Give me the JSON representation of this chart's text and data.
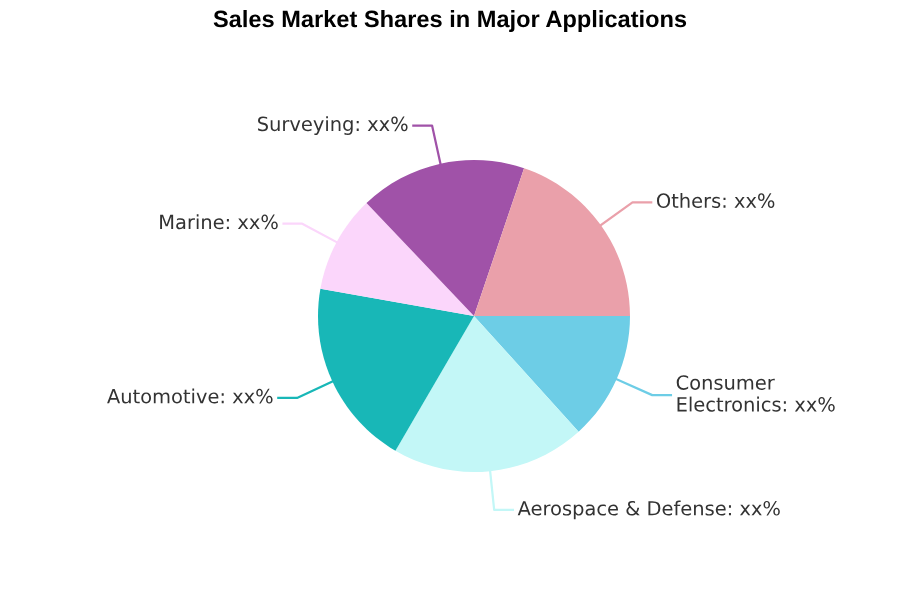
{
  "chart_data": {
    "type": "pie",
    "title": "Sales Market Shares in Major Applications",
    "categories": [
      "Consumer Electronics",
      "Aerospace & Defense",
      "Automotive",
      "Marine",
      "Surveying",
      "Others"
    ],
    "values": [
      13.3,
      20.1,
      19.4,
      10.1,
      17.3,
      19.8
    ],
    "value_labels": [
      "xx%",
      "xx%",
      "xx%",
      "xx%",
      "xx%",
      "xx%"
    ],
    "colors": [
      "#6dcde6",
      "#c3f7f7",
      "#18b7b7",
      "#fbd6fb",
      "#a052a8",
      "#eaa0aa"
    ]
  }
}
